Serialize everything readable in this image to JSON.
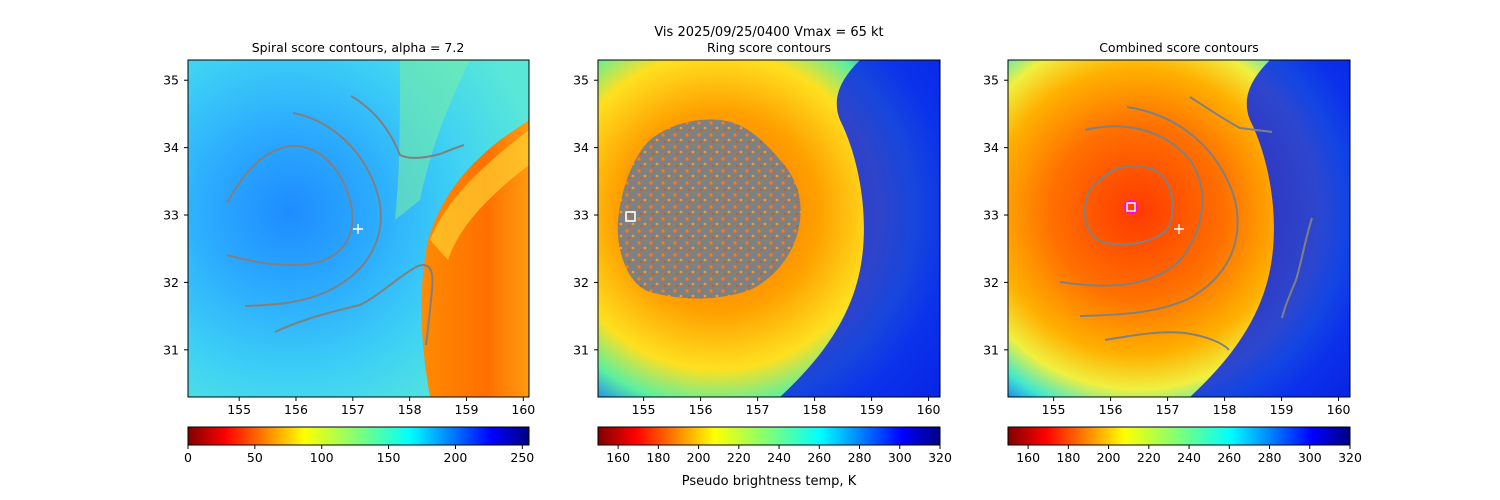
{
  "suptitle": "Vis  2025/09/25/0400    Vmax = 65 kt",
  "colorbar_label": "Pseudo brightness temp, K",
  "colors": {
    "contour": "#808080",
    "center_marker": "#ffffff",
    "best_fit_marker": "#ff00ff"
  },
  "chart_data": [
    {
      "type": "heatmap",
      "title": "Spiral score contours, alpha =  7.2",
      "colormap": "jet_r",
      "xlim": [
        154.1,
        160.1
      ],
      "ylim": [
        30.3,
        35.3
      ],
      "xticks": [
        "155",
        "156",
        "157",
        "158",
        "159",
        "160"
      ],
      "yticks": [
        "31",
        "32",
        "33",
        "34",
        "35"
      ],
      "colorbar": {
        "range": [
          0,
          255
        ],
        "ticks": [
          "0",
          "50",
          "100",
          "150",
          "200",
          "250"
        ]
      },
      "center_marker": {
        "lon": 157.05,
        "lat": 32.8,
        "symbol": "+"
      }
    },
    {
      "type": "heatmap",
      "title": "Ring score contours",
      "colormap": "jet_r",
      "xlim": [
        154.2,
        160.2
      ],
      "ylim": [
        30.3,
        35.3
      ],
      "xticks": [
        "155",
        "156",
        "157",
        "158",
        "159",
        "160"
      ],
      "yticks": [
        "31",
        "32",
        "33",
        "34",
        "35"
      ],
      "colorbar": {
        "range": [
          150,
          320
        ],
        "ticks": [
          "160",
          "180",
          "200",
          "220",
          "240",
          "260",
          "280",
          "300",
          "320"
        ]
      },
      "ring_region": {
        "center_lon": 156.0,
        "center_lat": 33.1,
        "radius_deg": 1.6
      },
      "marker": {
        "lon": 154.6,
        "lat": 32.98,
        "symbol": "square"
      }
    },
    {
      "type": "heatmap",
      "title": "Combined score contours",
      "colormap": "jet_r",
      "xlim": [
        154.2,
        160.2
      ],
      "ylim": [
        30.3,
        35.3
      ],
      "xticks": [
        "155",
        "156",
        "157",
        "158",
        "159",
        "160"
      ],
      "yticks": [
        "31",
        "32",
        "33",
        "34",
        "35"
      ],
      "colorbar": {
        "range": [
          150,
          320
        ],
        "ticks": [
          "160",
          "180",
          "200",
          "220",
          "240",
          "260",
          "280",
          "300",
          "320"
        ]
      },
      "center_marker": {
        "lon": 157.05,
        "lat": 32.8,
        "symbol": "+"
      },
      "best_fit_marker": {
        "lon": 156.25,
        "lat": 33.13,
        "symbol": "circle"
      }
    }
  ]
}
